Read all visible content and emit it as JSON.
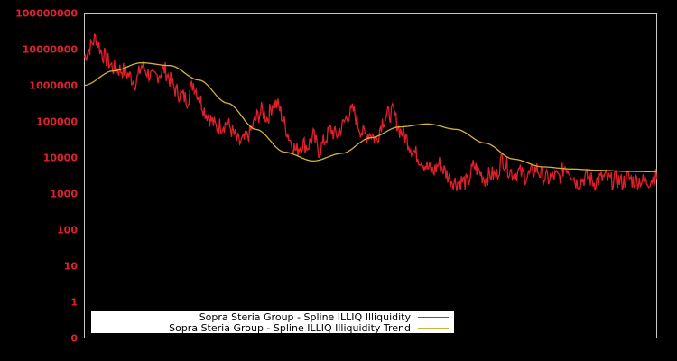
{
  "chart_data": {
    "type": "line",
    "title": "",
    "xlabel": "",
    "ylabel": "",
    "yscale": "log",
    "ylim": [
      0,
      100000000
    ],
    "y_ticks": [
      "100000000",
      "10000000",
      "1000000",
      "100000",
      "10000",
      "1000",
      "100",
      "10",
      "1",
      "0"
    ],
    "legend_position": "bottom-left inside",
    "grid": false,
    "series": [
      {
        "name": "Sopra Steria Group - Spline ILLIQ Illiquidity",
        "color": "#e0202a",
        "x": [
          0,
          0.02,
          0.03,
          0.05,
          0.07,
          0.09,
          0.1,
          0.12,
          0.14,
          0.16,
          0.18,
          0.19,
          0.21,
          0.23,
          0.25,
          0.27,
          0.28,
          0.29,
          0.3,
          0.31,
          0.32,
          0.33,
          0.34,
          0.35,
          0.36,
          0.37,
          0.38,
          0.39,
          0.4,
          0.41,
          0.42,
          0.43,
          0.44,
          0.45,
          0.46,
          0.47,
          0.48,
          0.49,
          0.5,
          0.51,
          0.52,
          0.53,
          0.54,
          0.55,
          0.56,
          0.57,
          0.58,
          0.59,
          0.6,
          0.61,
          0.62,
          0.63,
          0.64,
          0.65,
          0.66,
          0.67,
          0.68,
          0.69,
          0.7,
          0.71,
          0.72,
          0.73,
          0.74,
          0.75,
          0.76,
          0.77,
          0.78,
          0.79,
          0.8,
          0.81,
          0.82,
          0.83,
          0.84,
          0.85,
          0.86,
          0.87,
          0.88,
          0.89,
          0.9,
          0.91,
          0.92,
          0.93,
          0.94,
          0.95,
          0.96,
          0.97,
          0.98,
          0.99,
          1
        ],
        "values": [
          6000000,
          22000000,
          8000000,
          3000000,
          2500000,
          1200000,
          3500000,
          1500000,
          2800000,
          700000,
          400000,
          1200000,
          200000,
          70000,
          90000,
          25000,
          30000,
          50000,
          120000,
          200000,
          120000,
          350000,
          250000,
          80000,
          30000,
          15000,
          25000,
          20000,
          40000,
          15000,
          30000,
          60000,
          40000,
          70000,
          150000,
          200000,
          70000,
          40000,
          50000,
          30000,
          100000,
          150000,
          180000,
          60000,
          40000,
          20000,
          12000,
          8000,
          5000,
          4000,
          7000,
          4000,
          2500,
          2000,
          2200,
          2000,
          6000,
          4000,
          2500,
          3500,
          3000,
          10000,
          5000,
          3500,
          4000,
          3000,
          3500,
          5000,
          3000,
          2500,
          3000,
          2800,
          6000,
          4000,
          2000,
          2500,
          3000,
          2000,
          2500,
          2800,
          2200,
          2500,
          2000,
          2800,
          2200,
          2400,
          2000,
          2500,
          3000
        ]
      },
      {
        "name": "Sopra Steria Group - Spline ILLIQ Illiquidity Trend",
        "color": "#d4b03a",
        "x": [
          0,
          0.05,
          0.1,
          0.15,
          0.2,
          0.25,
          0.3,
          0.35,
          0.4,
          0.45,
          0.5,
          0.55,
          0.6,
          0.65,
          0.7,
          0.75,
          0.8,
          0.85,
          0.9,
          0.95,
          1
        ],
        "values": [
          1000000,
          2500000,
          4200000,
          3500000,
          1400000,
          320000,
          60000,
          14000,
          8000,
          13000,
          35000,
          70000,
          85000,
          60000,
          25000,
          9000,
          5500,
          4800,
          4400,
          4100,
          4000
        ]
      }
    ]
  },
  "legend": {
    "items": [
      {
        "label": "Sopra Steria Group - Spline ILLIQ Illiquidity",
        "color": "#e0202a"
      },
      {
        "label": "Sopra Steria Group - Spline ILLIQ Illiquidity Trend",
        "color": "#d4b03a"
      }
    ]
  }
}
